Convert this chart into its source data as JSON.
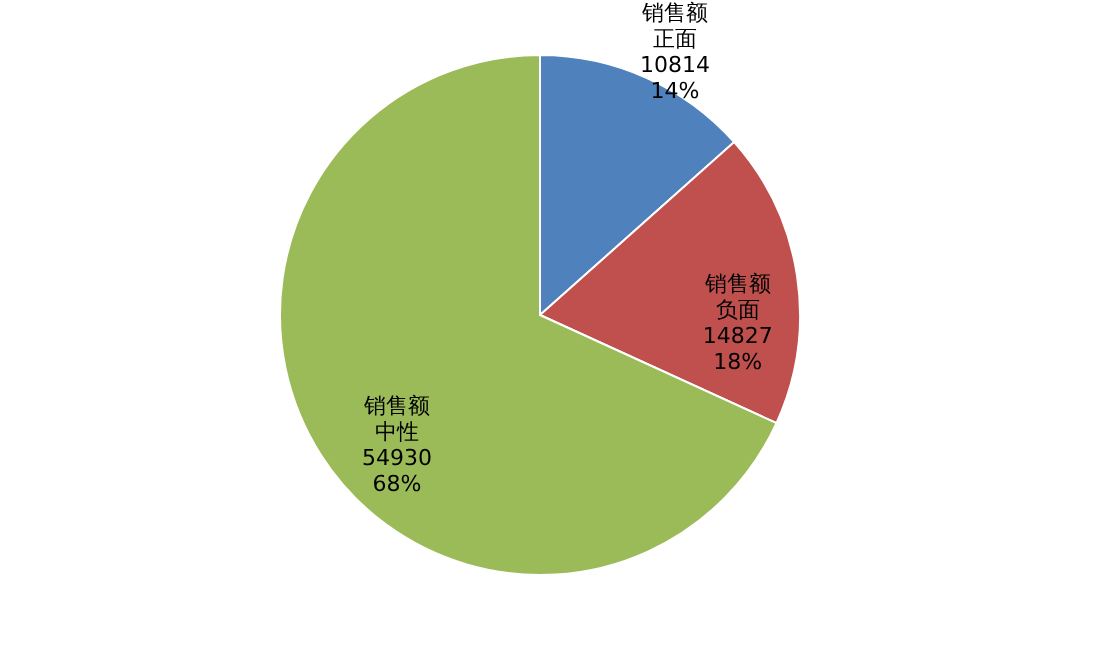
{
  "chart_data": {
    "type": "pie",
    "categories": [
      "正面",
      "负面",
      "中性"
    ],
    "series": [
      {
        "name": "销售额",
        "values": [
          10814,
          14827,
          54930
        ],
        "value_labels": [
          "10814\n14%",
          "14827\n18%",
          "54930\n68%"
        ]
      }
    ],
    "colors": [
      "#4f81bd",
      "#c0504d",
      "#9bbb59"
    ],
    "legend": false
  }
}
